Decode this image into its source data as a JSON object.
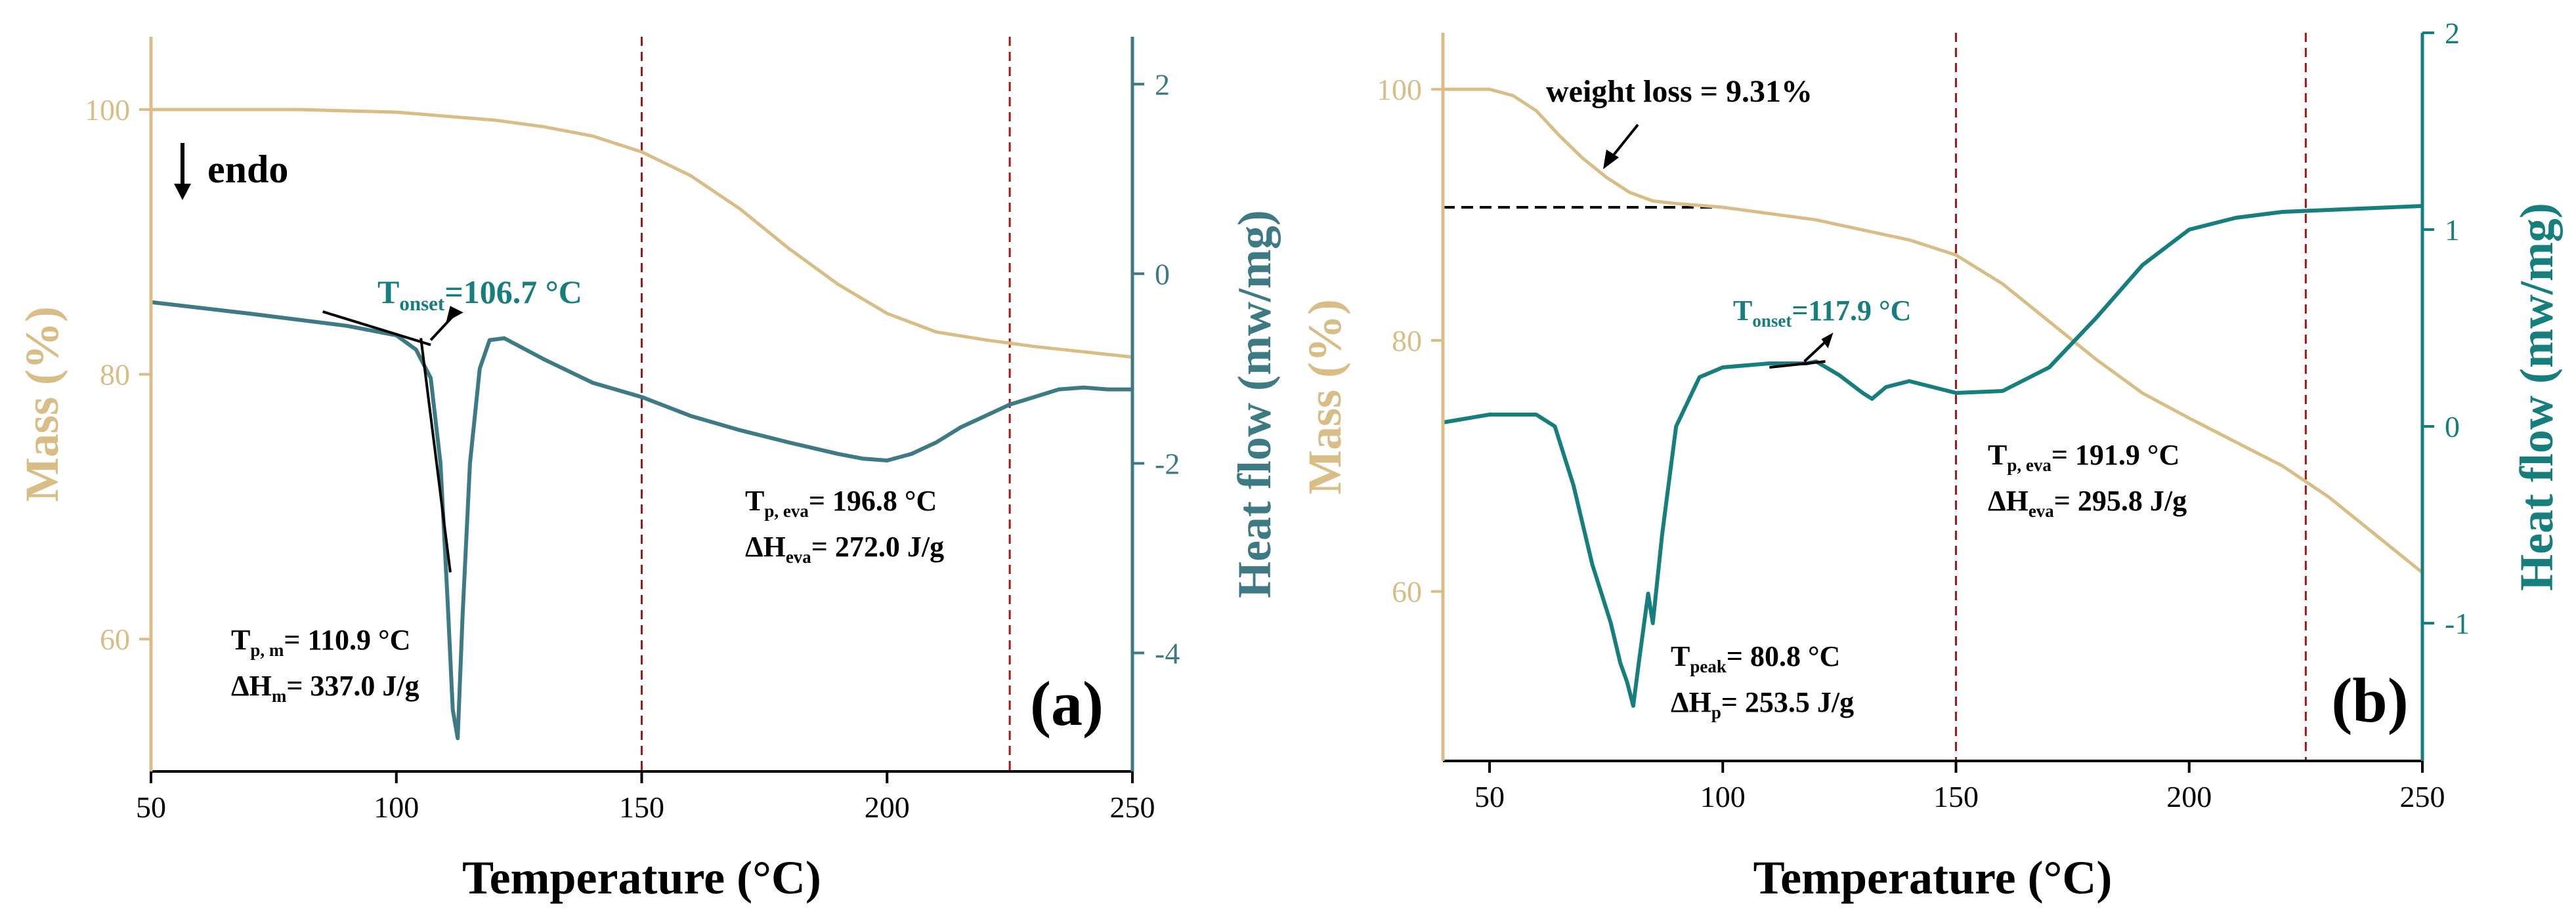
{
  "colors": {
    "mass": "#D8BD86",
    "heat": "#177E7E",
    "heat_a": "#3E7A84",
    "vline": "#A01818",
    "axis": "#000000"
  },
  "chart_data": [
    {
      "type": "line",
      "panel_label": "(a)",
      "xlabel": "Temperature (°C)",
      "ylabel_left": "Mass (%)",
      "ylabel_right": "Heat flow (mw/mg)",
      "xlim": [
        50,
        250
      ],
      "ylim_left": [
        50,
        105.5
      ],
      "ylim_right": [
        -5.25,
        2.5
      ],
      "xticks": [
        50,
        100,
        150,
        200,
        250
      ],
      "yticks_left": [
        60,
        80,
        100
      ],
      "yticks_right": [
        -4,
        -2,
        0,
        2
      ],
      "vlines": [
        150,
        225
      ],
      "series": [
        {
          "name": "Mass",
          "axis": "left",
          "x": [
            50,
            80,
            100,
            110,
            120,
            130,
            140,
            150,
            160,
            170,
            180,
            190,
            200,
            210,
            220,
            230,
            240,
            250
          ],
          "y": [
            100,
            100,
            99.8,
            99.5,
            99.2,
            98.7,
            98.0,
            96.8,
            95.0,
            92.5,
            89.5,
            86.8,
            84.6,
            83.2,
            82.6,
            82.1,
            81.7,
            81.3
          ]
        },
        {
          "name": "Heat flow",
          "axis": "right",
          "x": [
            50,
            70,
            90,
            100,
            104,
            107,
            109,
            110.5,
            111.5,
            112.5,
            113.5,
            115,
            117,
            119,
            122,
            130,
            140,
            150,
            160,
            170,
            180,
            190,
            195,
            200,
            205,
            210,
            215,
            220,
            225,
            230,
            235,
            240,
            245,
            250
          ],
          "y": [
            -0.3,
            -0.42,
            -0.55,
            -0.65,
            -0.8,
            -1.1,
            -2.0,
            -3.5,
            -4.6,
            -4.9,
            -3.6,
            -2.0,
            -1.0,
            -0.7,
            -0.68,
            -0.9,
            -1.15,
            -1.3,
            -1.5,
            -1.65,
            -1.78,
            -1.9,
            -1.95,
            -1.97,
            -1.9,
            -1.78,
            -1.62,
            -1.5,
            -1.38,
            -1.3,
            -1.22,
            -1.2,
            -1.22,
            -1.22
          ]
        }
      ],
      "annotations": [
        {
          "main": "T",
          "sub": "onset",
          "rest": "=106.7 °C",
          "color": "heat"
        },
        {
          "main": "T",
          "sub": "p, m",
          "rest": "= 110.9 °C",
          "color": "axis"
        },
        {
          "main": "ΔH",
          "sub": "m",
          "rest": "= 337.0 J/g",
          "color": "axis"
        },
        {
          "main": "T",
          "sub": "p, eva",
          "rest": "= 196.8 °C",
          "color": "axis"
        },
        {
          "main": "ΔH",
          "sub": "eva",
          "rest": "= 272.0 J/g",
          "color": "axis"
        }
      ],
      "endo_label": "endo"
    },
    {
      "type": "line",
      "panel_label": "(b)",
      "xlabel": "Temperature (°C)",
      "ylabel_left": "Mass (%)",
      "ylabel_right": "Heat flow (mw/mg)",
      "xlim": [
        40,
        250
      ],
      "ylim_left": [
        46.5,
        104.5
      ],
      "ylim_right": [
        -1.7,
        2.0
      ],
      "xticks": [
        50,
        100,
        150,
        200,
        250
      ],
      "yticks_left": [
        60,
        80,
        100
      ],
      "yticks_right": [
        -1,
        0,
        1,
        2
      ],
      "vlines": [
        150,
        225
      ],
      "series": [
        {
          "name": "Mass",
          "axis": "left",
          "x": [
            40,
            50,
            55,
            60,
            65,
            70,
            75,
            80,
            85,
            90,
            100,
            120,
            140,
            150,
            160,
            170,
            180,
            190,
            200,
            210,
            220,
            230,
            240,
            250
          ],
          "y": [
            100,
            100,
            99.5,
            98.3,
            96.3,
            94.5,
            93.0,
            91.8,
            91.1,
            90.9,
            90.6,
            89.6,
            88.0,
            86.8,
            84.5,
            81.5,
            78.5,
            75.8,
            73.8,
            71.9,
            70.0,
            67.5,
            64.5,
            61.5
          ]
        },
        {
          "name": "Heat flow",
          "axis": "right",
          "x": [
            40,
            50,
            60,
            64,
            68,
            72,
            74,
            76,
            78,
            79.5,
            80.8,
            82,
            84,
            85,
            87,
            90,
            95,
            100,
            110,
            118,
            120,
            125,
            130,
            132,
            135,
            140,
            150,
            160,
            170,
            180,
            190,
            200,
            210,
            220,
            230,
            240,
            250
          ],
          "y": [
            0.02,
            0.06,
            0.06,
            0.0,
            -0.3,
            -0.7,
            -0.85,
            -1.0,
            -1.2,
            -1.3,
            -1.42,
            -1.2,
            -0.85,
            -1.0,
            -0.55,
            0.0,
            0.25,
            0.3,
            0.32,
            0.32,
            0.33,
            0.26,
            0.17,
            0.14,
            0.2,
            0.23,
            0.17,
            0.18,
            0.3,
            0.55,
            0.82,
            1.0,
            1.06,
            1.09,
            1.1,
            1.11,
            1.12
          ]
        }
      ],
      "annotations": [
        {
          "text": "weight loss = 9.31%",
          "color": "axis"
        },
        {
          "main": "T",
          "sub": "onset",
          "rest": "=117.9 °C",
          "color": "heat"
        },
        {
          "main": "T",
          "sub": "p, eva",
          "rest": "= 191.9 °C",
          "color": "axis"
        },
        {
          "main": "ΔH",
          "sub": "eva",
          "rest": "= 295.8 J/g",
          "color": "axis"
        },
        {
          "main": "T",
          "sub": "peak",
          "rest": "= 80.8 °C",
          "color": "axis"
        },
        {
          "main": "ΔH",
          "sub": "p",
          "rest": "= 253.5 J/g",
          "color": "axis"
        }
      ],
      "dashed_level": 90.6
    }
  ]
}
